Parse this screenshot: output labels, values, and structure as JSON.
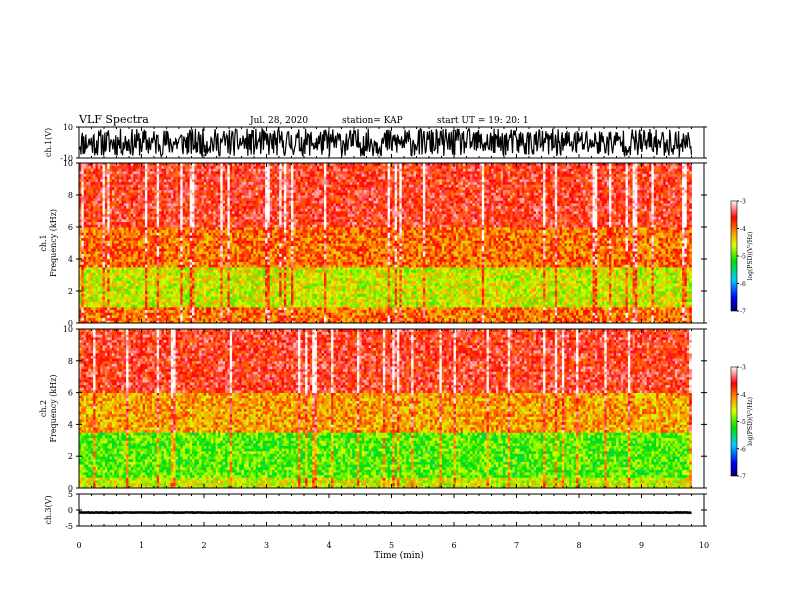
{
  "header": {
    "title": "VLF Spectra",
    "date": "Jul. 28, 2020",
    "station": "station= KAP",
    "start": "start UT =  19: 20: 1"
  },
  "chart_data": [
    {
      "type": "line",
      "panel": "ch1-waveform",
      "ylabel": "ch.1(V)",
      "ylim": [
        -10,
        10
      ],
      "yticks": [
        "10",
        "-10"
      ],
      "xlim": [
        0,
        10
      ],
      "x_extent": [
        0,
        9.8
      ],
      "series_color": "#000000",
      "description_values": {
        "typical_min": -9,
        "typical_max": 9
      }
    },
    {
      "type": "heatmap",
      "panel": "ch1-spectrogram",
      "ylabel": "ch.1 Frequency (kHz)",
      "ylim": [
        0,
        10
      ],
      "yticks": [
        "0",
        "2",
        "4",
        "6",
        "8",
        "10"
      ],
      "xlim": [
        0,
        10
      ],
      "x_extent": [
        0,
        9.8
      ],
      "colorbar": {
        "label": "log(PSD)(V²/Hz)",
        "range": [
          -7,
          -3
        ],
        "ticks": [
          "-3",
          "-4",
          "-5",
          "-6",
          "-7"
        ]
      },
      "dominant_level_by_band": [
        {
          "freq_range": [
            0,
            1
          ],
          "level": -4.0
        },
        {
          "freq_range": [
            1,
            3.5
          ],
          "level": -4.6
        },
        {
          "freq_range": [
            3.5,
            6
          ],
          "level": -4.0
        },
        {
          "freq_range": [
            6,
            10
          ],
          "level": -3.6
        }
      ]
    },
    {
      "type": "heatmap",
      "panel": "ch2-spectrogram",
      "ylabel": "ch.2 Frequency (kHz)",
      "ylim": [
        0,
        10
      ],
      "yticks": [
        "0",
        "2",
        "4",
        "6",
        "8",
        "10"
      ],
      "xlim": [
        0,
        10
      ],
      "x_extent": [
        0,
        9.8
      ],
      "colorbar": {
        "label": "log(PSD)(V²/Hz)",
        "range": [
          -7,
          -3
        ],
        "ticks": [
          "-3",
          "-4",
          "-5",
          "-6",
          "-7"
        ]
      },
      "dominant_level_by_band": [
        {
          "freq_range": [
            0,
            0.7
          ],
          "level": -4.6
        },
        {
          "freq_range": [
            0.7,
            3.5
          ],
          "level": -5.0
        },
        {
          "freq_range": [
            3.5,
            6
          ],
          "level": -4.2
        },
        {
          "freq_range": [
            6,
            10
          ],
          "level": -3.6
        }
      ]
    },
    {
      "type": "line",
      "panel": "ch3-waveform",
      "ylabel": "ch.3(V)",
      "ylim": [
        -5,
        5
      ],
      "yticks": [
        "5",
        "0",
        "-5"
      ],
      "xlim": [
        0,
        10
      ],
      "x_extent": [
        0,
        9.8
      ],
      "series_color": "#000000",
      "description_values": {
        "typical_min": -1.2,
        "typical_max": -0.4
      }
    }
  ],
  "xaxis": {
    "label": "Time (min)",
    "ticks": [
      "0",
      "1",
      "2",
      "3",
      "4",
      "5",
      "6",
      "7",
      "8",
      "9",
      "10"
    ]
  }
}
